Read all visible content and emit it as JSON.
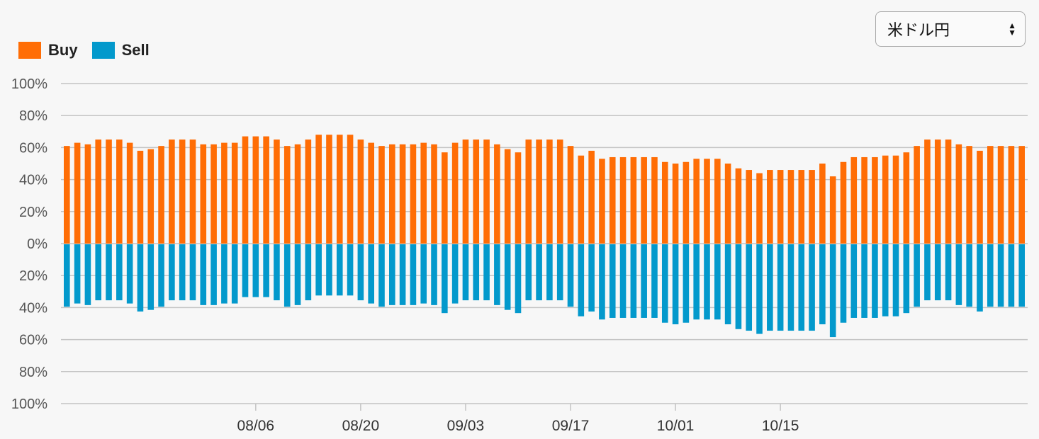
{
  "legend": {
    "buy_label": "Buy",
    "sell_label": "Sell",
    "buy_color": "#ff6d05",
    "sell_color": "#0399cc"
  },
  "currency_select": {
    "selected": "米ドル円",
    "icon": "up-down-arrows-icon"
  },
  "chart_data": {
    "type": "bar",
    "title": "",
    "xlabel": "",
    "ylabel": "",
    "y_tick_labels_top": [
      "100%",
      "80%",
      "60%",
      "40%",
      "20%",
      "0%"
    ],
    "y_tick_labels_bottom": [
      "20%",
      "40%",
      "60%",
      "80%",
      "100%"
    ],
    "ylim": [
      -100,
      100
    ],
    "grid": true,
    "legend_position": "top-left",
    "x_tick_labels": [
      "08/06",
      "08/20",
      "09/03",
      "09/17",
      "10/01",
      "10/15"
    ],
    "x_tick_bar_index": [
      18,
      28,
      38,
      48,
      58,
      68
    ],
    "series": [
      {
        "name": "Buy",
        "values": [
          61,
          63,
          62,
          65,
          65,
          65,
          63,
          58,
          59,
          61,
          65,
          65,
          65,
          62,
          62,
          63,
          63,
          67,
          67,
          67,
          65,
          61,
          62,
          65,
          68,
          68,
          68,
          68,
          65,
          63,
          61,
          62,
          62,
          62,
          63,
          62,
          57,
          63,
          65,
          65,
          65,
          62,
          59,
          57,
          65,
          65,
          65,
          65,
          61,
          55,
          58,
          53,
          54,
          54,
          54,
          54,
          54,
          51,
          50,
          51,
          53,
          53,
          53,
          50,
          47,
          46,
          44,
          46,
          46,
          46,
          46,
          46,
          50,
          42,
          51,
          54,
          54,
          54,
          55,
          55,
          57,
          61,
          65,
          65,
          65,
          62,
          61,
          58,
          61,
          61,
          61,
          61
        ]
      },
      {
        "name": "Sell",
        "values": [
          39,
          37,
          38,
          35,
          35,
          35,
          37,
          42,
          41,
          39,
          35,
          35,
          35,
          38,
          38,
          37,
          37,
          33,
          33,
          33,
          35,
          39,
          38,
          35,
          32,
          32,
          32,
          32,
          35,
          37,
          39,
          38,
          38,
          38,
          37,
          38,
          43,
          37,
          35,
          35,
          35,
          38,
          41,
          43,
          35,
          35,
          35,
          35,
          39,
          45,
          42,
          47,
          46,
          46,
          46,
          46,
          46,
          49,
          50,
          49,
          47,
          47,
          47,
          50,
          53,
          54,
          56,
          54,
          54,
          54,
          54,
          54,
          50,
          58,
          49,
          46,
          46,
          46,
          45,
          45,
          43,
          39,
          35,
          35,
          35,
          38,
          39,
          42,
          39,
          39,
          39,
          39
        ]
      }
    ]
  }
}
